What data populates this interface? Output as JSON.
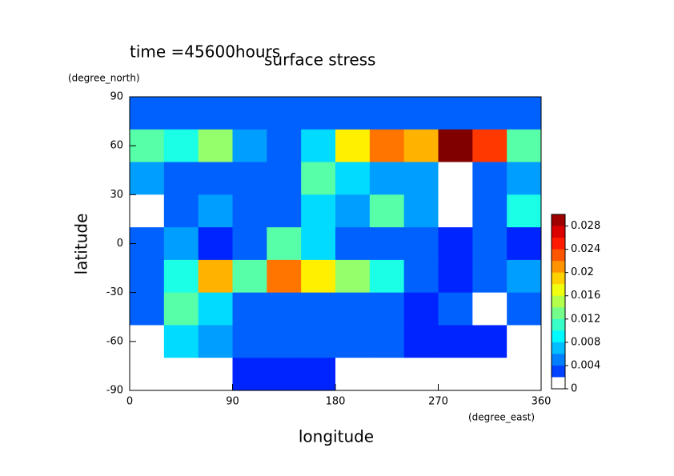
{
  "chart_data": {
    "type": "heatmap",
    "title": "surface stress",
    "subtitle": "time =45600hours",
    "x_label": "longitude",
    "x_unit": "(degree_east)",
    "y_label": "latitude",
    "y_unit": "(degree_north)",
    "x": [
      15,
      45,
      75,
      105,
      135,
      165,
      195,
      225,
      255,
      285,
      315,
      345
    ],
    "y": [
      80,
      60,
      40,
      20,
      0,
      -20,
      -40,
      -60,
      -80
    ],
    "z": [
      [
        0.004,
        0.004,
        0.004,
        0.004,
        0.004,
        0.004,
        0.004,
        0.004,
        0.004,
        0.004,
        0.004,
        0.004
      ],
      [
        0.012,
        0.01,
        0.014,
        0.006,
        0.004,
        0.008,
        0.018,
        0.022,
        0.02,
        0.03,
        0.024,
        0.012
      ],
      [
        0.006,
        0.004,
        0.004,
        0.004,
        0.004,
        0.012,
        0.008,
        0.006,
        0.006,
        0,
        0.004,
        0.006
      ],
      [
        0,
        0.004,
        0.006,
        0.004,
        0.004,
        0.008,
        0.006,
        0.012,
        0.006,
        0,
        0.004,
        0.01
      ],
      [
        0.004,
        0.006,
        0.002,
        0.004,
        0.012,
        0.008,
        0.004,
        0.004,
        0.004,
        0.002,
        0.004,
        0.002
      ],
      [
        0.004,
        0.01,
        0.02,
        0.012,
        0.022,
        0.018,
        0.014,
        0.01,
        0.004,
        0.002,
        0.004,
        0.006
      ],
      [
        0.004,
        0.012,
        0.008,
        0.004,
        0.004,
        0.004,
        0.004,
        0.004,
        0.002,
        0.004,
        0,
        0.004
      ],
      [
        0,
        0.008,
        0.006,
        0.004,
        0.004,
        0.004,
        0.004,
        0.004,
        0.002,
        0.002,
        0.002,
        0
      ],
      [
        0,
        0,
        0,
        0.002,
        0.002,
        0.002,
        0,
        0,
        0,
        0,
        0,
        0
      ]
    ],
    "xlim": [
      0,
      360
    ],
    "xticks": [
      0,
      90,
      180,
      270,
      360
    ],
    "ylim": [
      -90,
      90
    ],
    "yticks": [
      -90,
      -60,
      -30,
      0,
      30,
      60,
      90
    ],
    "clim": [
      0,
      0.03
    ],
    "cticks": [
      0,
      0.004,
      0.008,
      0.012,
      0.016,
      0.02,
      0.024,
      0.028
    ]
  }
}
